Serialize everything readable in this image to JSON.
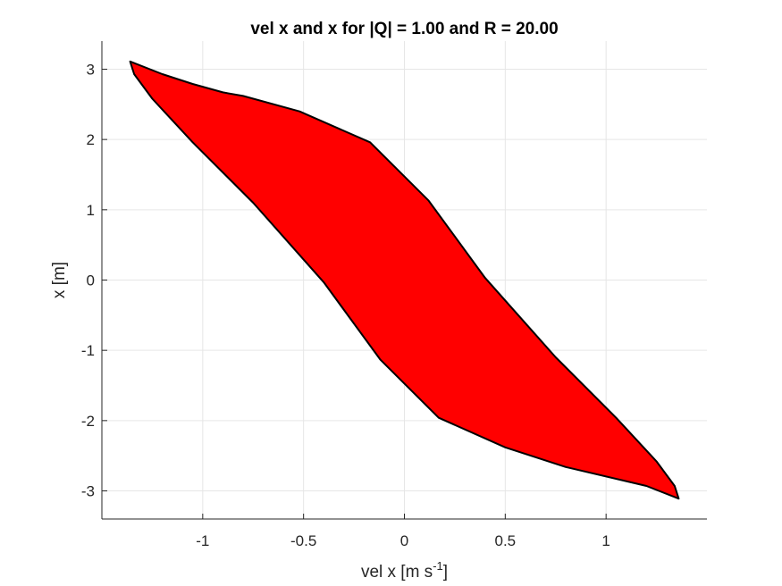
{
  "chart_data": {
    "type": "area",
    "title": "vel x and x for |Q| = 1.00 and R = 20.00",
    "xlabel": {
      "base": "vel x [m s",
      "sup": "-1",
      "end": "]"
    },
    "ylabel": "x [m]",
    "xlim": [
      -1.5,
      1.5
    ],
    "ylim": [
      -3.4,
      3.4
    ],
    "xticks": [
      -1,
      -0.5,
      0,
      0.5,
      1
    ],
    "xtick_labels": [
      "-1",
      "-0.5",
      "0",
      "0.5",
      "1"
    ],
    "yticks": [
      3,
      2,
      1,
      0,
      -1,
      -2,
      -3
    ],
    "ytick_labels": [
      "3",
      "2",
      "1",
      "0",
      "-1",
      "-2",
      "-3"
    ],
    "grid": true,
    "fill_color": "#ff0000",
    "edge_color": "#000000",
    "polygon": {
      "x": [
        -1.36,
        -1.2,
        -1.05,
        -0.9,
        -0.8,
        -0.52,
        -0.17,
        0.12,
        0.4,
        0.75,
        1.05,
        1.25,
        1.34,
        1.36,
        1.2,
        0.8,
        0.5,
        0.17,
        -0.12,
        -0.4,
        -0.75,
        -1.05,
        -1.25,
        -1.34,
        -1.36
      ],
      "y": [
        3.11,
        2.93,
        2.79,
        2.67,
        2.62,
        2.4,
        1.96,
        1.13,
        0.03,
        -1.1,
        -1.96,
        -2.58,
        -2.93,
        -3.11,
        -2.93,
        -2.66,
        -2.38,
        -1.96,
        -1.13,
        -0.03,
        1.1,
        1.96,
        2.58,
        2.93,
        3.11
      ]
    }
  }
}
